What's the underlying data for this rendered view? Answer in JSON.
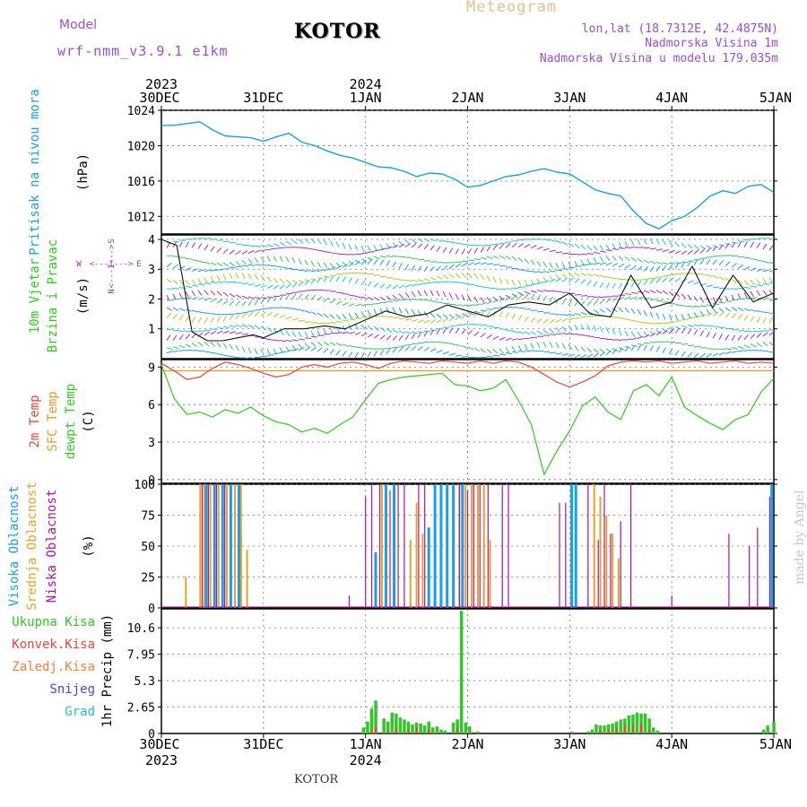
{
  "header": {
    "model_label": "Model",
    "model_name": "wrf-nmm_v3.9.1  e1km",
    "city": "KOTOR",
    "title": "Meteogram",
    "lonlat": "lon,lat (18.7312E, 42.4875N)",
    "altitude": "Nadmorska Visina 1m",
    "model_altitude": "Nadmorska Visina u modelu 179.035m",
    "credit": "made by Angel",
    "footer_city": "KOTOR"
  },
  "colors": {
    "pressure": "#1a9ee8",
    "temp": "#e8463c",
    "sfc_temp": "#e69a2a",
    "dewpt": "#2ecc1f",
    "high_cloud": "#1a9ee8",
    "mid_cloud": "#e6a22a",
    "low_cloud": "#b0139e",
    "total_precip": "#33c42a",
    "conv_precip": "#e8463c",
    "frz_precip": "#f0803c",
    "snow": "#4646e6",
    "hail": "#1fc2c2",
    "wind_accent": "#9b2fd0",
    "header_purple": "#9b4fd0",
    "header_orange": "#e6c08a"
  },
  "time_axis": {
    "top_years": [
      "2023",
      "2024"
    ],
    "bottom_years": [
      "2023",
      "2024"
    ],
    "day_labels": [
      "30DEC",
      "31DEC",
      "1JAN",
      "2JAN",
      "3JAN",
      "4JAN",
      "5JAN"
    ]
  },
  "chart_data": [
    {
      "type": "line",
      "id": "pressure",
      "ylabel": "Pritisak na nivou mora",
      "unit": "(hPa)",
      "ylim": [
        1010,
        1024
      ],
      "yticks": [
        "1012",
        "1016",
        "1020",
        "1024"
      ],
      "grid": true,
      "x": [
        0,
        0.125,
        0.25,
        0.375,
        0.5,
        0.625,
        0.75,
        0.875,
        1,
        1.125,
        1.25,
        1.375,
        1.5,
        1.625,
        1.75,
        1.875,
        2,
        2.125,
        2.25,
        2.375,
        2.5,
        2.625,
        2.75,
        2.875,
        3,
        3.125,
        3.25,
        3.375,
        3.5,
        3.625,
        3.75,
        3.875,
        4,
        4.125,
        4.25,
        4.375,
        4.5,
        4.625,
        4.75,
        4.875,
        5,
        5.125,
        5.25,
        5.375,
        5.5,
        5.625,
        5.75,
        5.875,
        6
      ],
      "series": [
        {
          "values": [
            1022.3,
            1022.3,
            1022.5,
            1022.7,
            1021.8,
            1021.1,
            1021.0,
            1020.9,
            1020.5,
            1021.0,
            1021.4,
            1020.4,
            1020.0,
            1019.4,
            1018.9,
            1018.6,
            1018.1,
            1017.6,
            1017.5,
            1017.1,
            1016.5,
            1016.9,
            1016.8,
            1016.2,
            1015.3,
            1015.5,
            1016.0,
            1016.5,
            1016.7,
            1017.1,
            1017.4,
            1017.0,
            1016.8,
            1015.9,
            1015.0,
            1014.6,
            1014.3,
            1012.6,
            1011.2,
            1010.6,
            1011.5,
            1012.0,
            1013.0,
            1014.3,
            1014.9,
            1014.6,
            1015.4,
            1015.6,
            1014.7
          ]
        }
      ]
    },
    {
      "type": "line",
      "id": "wind",
      "ylabel": "10m Vjetar",
      "ylabel2": "Brzina i Pravac",
      "unit": "(m/s)",
      "compass": [
        "W",
        "<---I--->",
        "E",
        "N",
        "<---I--->",
        "S"
      ],
      "ylim": [
        0,
        4.15
      ],
      "yticks": [
        "1",
        "2",
        "3",
        "4"
      ],
      "grid": true,
      "x": [
        0,
        0.15,
        0.3,
        0.45,
        0.6,
        0.75,
        0.9,
        1,
        1.2,
        1.4,
        1.6,
        1.8,
        2,
        2.2,
        2.4,
        2.6,
        2.8,
        3,
        3.2,
        3.4,
        3.6,
        3.8,
        4,
        4.2,
        4.4,
        4.6,
        4.8,
        5,
        5.2,
        5.4,
        5.6,
        5.8,
        6
      ],
      "series": [
        {
          "name": "speed",
          "values": [
            4.0,
            3.8,
            0.9,
            0.6,
            0.6,
            0.7,
            0.8,
            0.7,
            1.0,
            1.0,
            1.1,
            1.0,
            1.3,
            1.6,
            1.4,
            1.5,
            1.8,
            1.6,
            1.4,
            1.8,
            1.9,
            1.8,
            2.2,
            1.5,
            1.4,
            2.8,
            1.7,
            1.9,
            3.1,
            1.7,
            2.8,
            1.9,
            2.2
          ]
        }
      ]
    },
    {
      "type": "line",
      "id": "temperature",
      "ylabels": [
        "2m Temp",
        "SFC Temp",
        "dewpt Temp"
      ],
      "unit": "(C)",
      "ylim": [
        -0.3,
        9.6
      ],
      "yticks": [
        "0",
        "3",
        "6",
        "9"
      ],
      "grid": true,
      "x": [
        0,
        0.125,
        0.25,
        0.375,
        0.5,
        0.625,
        0.75,
        0.875,
        1,
        1.125,
        1.25,
        1.375,
        1.5,
        1.625,
        1.75,
        1.875,
        2,
        2.125,
        2.25,
        2.375,
        2.5,
        2.625,
        2.75,
        2.875,
        3,
        3.125,
        3.25,
        3.375,
        3.5,
        3.625,
        3.75,
        3.875,
        4,
        4.125,
        4.25,
        4.375,
        4.5,
        4.625,
        4.75,
        4.875,
        5,
        5.125,
        5.25,
        5.375,
        5.5,
        5.625,
        5.75,
        5.875,
        6
      ],
      "series": [
        {
          "name": "2m Temp",
          "values": [
            9.3,
            8.7,
            8.0,
            8.2,
            8.9,
            9.4,
            9.2,
            8.9,
            8.5,
            8.2,
            8.4,
            9.0,
            9.2,
            9.0,
            9.3,
            9.4,
            9.2,
            8.9,
            9.3,
            9.5,
            9.4,
            9.3,
            9.5,
            9.4,
            9.3,
            9.5,
            9.3,
            9.5,
            9.4,
            9.0,
            8.4,
            7.8,
            7.4,
            7.8,
            8.3,
            9.1,
            9.4,
            9.5,
            9.4,
            9.5,
            9.3,
            9.4,
            9.5,
            9.3,
            9.4,
            9.5,
            9.3,
            9.4,
            9.3
          ]
        },
        {
          "name": "SFC Temp",
          "values": [
            8.7,
            8.7,
            8.7,
            8.7,
            8.7,
            8.7,
            8.7,
            8.7,
            8.7,
            8.7,
            8.7,
            8.7,
            8.7,
            8.7,
            8.7,
            8.7,
            8.7,
            8.7,
            8.7,
            8.7,
            8.7,
            8.7,
            8.7,
            8.7,
            8.7,
            8.7,
            8.7,
            8.7,
            8.7,
            8.7,
            8.7,
            8.7,
            8.7,
            8.7,
            8.7,
            8.7,
            8.7,
            8.7,
            8.7,
            8.7,
            8.7,
            8.7,
            8.7,
            8.7,
            8.7,
            8.7,
            8.7,
            8.7,
            8.7
          ]
        },
        {
          "name": "dewpt Temp",
          "values": [
            9.2,
            6.5,
            5.2,
            5.4,
            5.0,
            5.6,
            5.3,
            5.8,
            5.1,
            4.6,
            4.4,
            3.8,
            4.1,
            3.7,
            4.4,
            5.0,
            6.4,
            7.7,
            8.0,
            8.2,
            8.3,
            8.4,
            8.5,
            7.6,
            7.5,
            7.1,
            7.3,
            8.0,
            6.3,
            4.4,
            0.4,
            2.3,
            3.9,
            5.9,
            6.6,
            5.4,
            4.8,
            7.1,
            7.6,
            6.7,
            8.2,
            5.8,
            5.1,
            4.5,
            4.0,
            4.8,
            5.2,
            7.0,
            8.1
          ]
        }
      ]
    },
    {
      "type": "bar",
      "id": "cloud",
      "ylabels": [
        "Visoka Oblacnost",
        "Srednja Oblacnost",
        "Niska Oblacnost"
      ],
      "unit": "(%)",
      "ylim": [
        0,
        100
      ],
      "yticks": [
        "0",
        "25",
        "50",
        "75",
        "100"
      ],
      "grid": true,
      "series": [
        {
          "name": "Visoka Oblacnost",
          "x": [
            0.44,
            0.52,
            0.6,
            0.68,
            0.76,
            2.1,
            2.2,
            2.28,
            2.62,
            2.68,
            2.74,
            2.8,
            2.86,
            2.95,
            4.02,
            4.06,
            5.98
          ],
          "values": [
            100,
            100,
            100,
            100,
            100,
            45,
            100,
            100,
            65,
            100,
            100,
            100,
            100,
            100,
            100,
            100,
            100
          ]
        },
        {
          "name": "Srednja Oblacnost",
          "x": [
            0.24,
            0.38,
            0.42,
            0.48,
            0.56,
            0.64,
            0.72,
            0.78,
            0.84,
            0.78,
            2.16,
            2.44,
            2.5,
            2.56,
            2.92,
            2.98,
            3.04,
            3.1,
            3.16,
            3.22,
            4.24,
            4.3,
            4.36,
            4.42,
            4.48
          ],
          "values": [
            25,
            100,
            100,
            100,
            100,
            100,
            100,
            100,
            47,
            60,
            100,
            55,
            85,
            60,
            100,
            100,
            100,
            100,
            100,
            55,
            100,
            90,
            75,
            60,
            40
          ]
        },
        {
          "name": "Niska Oblacnost",
          "x": [
            0.4,
            0.46,
            0.54,
            0.62,
            1.84,
            2.0,
            2.06,
            2.14,
            2.24,
            2.32,
            2.38,
            2.52,
            2.58,
            2.92,
            3.0,
            3.06,
            3.12,
            3.2,
            3.34,
            3.4,
            3.9,
            3.96,
            4.18,
            4.28,
            4.34,
            4.4,
            4.5,
            4.6,
            5.0,
            5.56,
            5.76,
            5.84,
            5.96
          ],
          "values": [
            100,
            100,
            100,
            100,
            10,
            90,
            100,
            100,
            95,
            100,
            100,
            100,
            100,
            100,
            95,
            100,
            100,
            100,
            100,
            100,
            85,
            85,
            100,
            55,
            100,
            60,
            70,
            100,
            10,
            60,
            50,
            65,
            90
          ]
        }
      ]
    },
    {
      "type": "bar",
      "id": "precip",
      "ylabel": "1hr Precip (mm)",
      "legend": [
        "Ukupna Kisa",
        "Konvek.Kisa",
        "Zaledj.Kisa",
        "Snijeg",
        "Grad"
      ],
      "ylim": [
        0,
        12.5
      ],
      "yticks": [
        "0",
        "2.65",
        "5.3",
        "7.95",
        "10.6"
      ],
      "grid": true,
      "series": [
        {
          "name": "Ukupna Kisa",
          "x": [
            1.98,
            2.02,
            2.06,
            2.1,
            2.18,
            2.22,
            2.26,
            2.3,
            2.34,
            2.38,
            2.42,
            2.46,
            2.5,
            2.54,
            2.58,
            2.62,
            2.66,
            2.7,
            2.74,
            2.78,
            2.86,
            2.9,
            2.94,
            2.98,
            3.02,
            3.1,
            4.02,
            4.18,
            4.22,
            4.26,
            4.3,
            4.34,
            4.38,
            4.42,
            4.46,
            4.5,
            4.54,
            4.58,
            4.62,
            4.66,
            4.7,
            4.74,
            4.78,
            4.82,
            4.86,
            5.9,
            5.94,
            6.0
          ],
          "values": [
            0.6,
            1.2,
            2.5,
            3.3,
            1.5,
            1.2,
            2.1,
            2.0,
            1.6,
            1.4,
            1.2,
            0.9,
            1.1,
            1.0,
            0.8,
            1.2,
            0.6,
            0.7,
            0.4,
            0.3,
            1.1,
            1.4,
            12.3,
            1.1,
            0.7,
            0.2,
            0.2,
            0.2,
            0.4,
            0.9,
            0.8,
            0.8,
            0.9,
            1.0,
            1.2,
            1.4,
            1.5,
            1.8,
            1.9,
            2.1,
            2.0,
            2.0,
            1.5,
            0.6,
            0.3,
            0.4,
            0.8,
            1.2
          ]
        },
        {
          "name": "Konvek.Kisa",
          "x": [
            2.06,
            2.1,
            2.22,
            2.3,
            2.42,
            2.5,
            2.62,
            2.9,
            4.3,
            4.38,
            4.46,
            4.54,
            4.62,
            4.7,
            4.78
          ],
          "values": [
            0.4,
            0.6,
            0.3,
            0.5,
            0.4,
            0.6,
            0.4,
            0.5,
            0.3,
            0.4,
            0.6,
            0.8,
            0.9,
            1.0,
            0.4
          ]
        }
      ]
    }
  ]
}
